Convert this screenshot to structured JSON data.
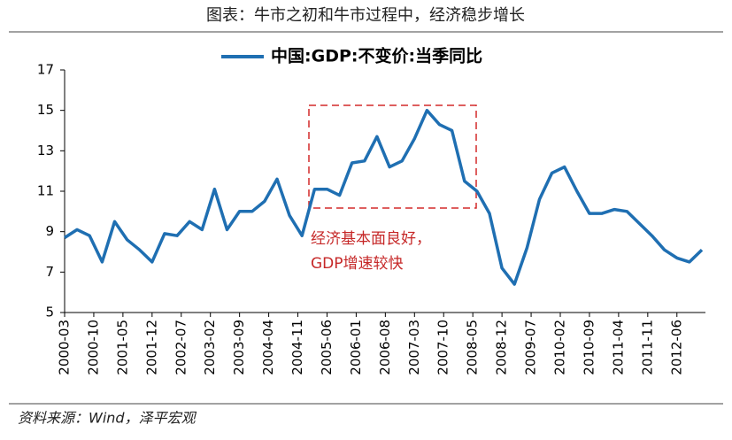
{
  "chart_data": {
    "type": "line",
    "title": "图表：牛市之初和牛市过程中，经济稳步增长",
    "source": "资料来源：Wind，泽平宏观",
    "annotation": [
      "经济基本面良好，",
      "GDP增速较快"
    ],
    "x": [
      "2000-03",
      "2000-06",
      "2000-09",
      "2000-12",
      "2001-03",
      "2001-06",
      "2001-09",
      "2001-12",
      "2002-03",
      "2002-06",
      "2002-09",
      "2002-12",
      "2003-03",
      "2003-06",
      "2003-09",
      "2003-12",
      "2004-03",
      "2004-06",
      "2004-09",
      "2004-12",
      "2005-03",
      "2005-06",
      "2005-09",
      "2005-12",
      "2006-03",
      "2006-06",
      "2006-09",
      "2006-12",
      "2007-03",
      "2007-06",
      "2007-09",
      "2007-12",
      "2008-03",
      "2008-06",
      "2008-09",
      "2008-12",
      "2009-03",
      "2009-06",
      "2009-09",
      "2009-12",
      "2010-03",
      "2010-06",
      "2010-09",
      "2010-12",
      "2011-03",
      "2011-06",
      "2011-09",
      "2011-12",
      "2012-03",
      "2012-06",
      "2012-09",
      "2012-12"
    ],
    "series": [
      {
        "name": "中国:GDP:不变价:当季同比",
        "color": "#1f6fb2",
        "values": [
          8.7,
          9.1,
          8.8,
          7.5,
          9.5,
          8.6,
          8.1,
          7.5,
          8.9,
          8.8,
          9.5,
          9.1,
          11.1,
          9.1,
          10.0,
          10.0,
          10.5,
          11.6,
          9.8,
          8.8,
          11.1,
          11.1,
          10.8,
          12.4,
          12.5,
          13.7,
          12.2,
          12.5,
          13.6,
          15.0,
          14.3,
          14.0,
          11.5,
          11.0,
          9.9,
          7.2,
          6.4,
          8.2,
          10.6,
          11.9,
          12.2,
          11.0,
          9.9,
          9.9,
          10.1,
          10.0,
          9.4,
          8.8,
          8.1,
          7.7,
          7.5,
          8.1
        ]
      }
    ],
    "xticks": [
      "2000-03",
      "2000-10",
      "2001-05",
      "2001-12",
      "2002-07",
      "2003-02",
      "2003-09",
      "2004-04",
      "2004-11",
      "2005-06",
      "2006-01",
      "2006-08",
      "2007-03",
      "2007-10",
      "2008-05",
      "2008-12",
      "2009-07",
      "2010-02",
      "2010-09",
      "2011-04",
      "2011-11",
      "2012-06"
    ],
    "ylim": [
      5,
      17
    ],
    "yticks": [
      5,
      7,
      9,
      11,
      13,
      15,
      17
    ],
    "grid": false
  }
}
